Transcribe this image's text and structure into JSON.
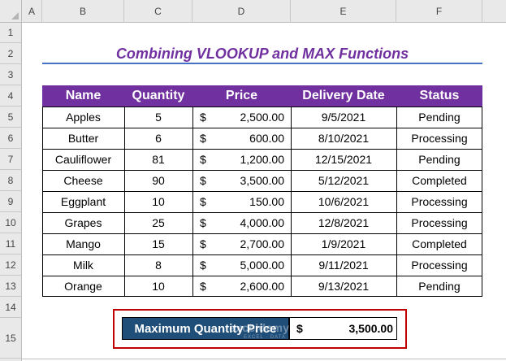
{
  "columns": [
    "A",
    "B",
    "C",
    "D",
    "E",
    "F"
  ],
  "rows": [
    "1",
    "2",
    "3",
    "4",
    "5",
    "6",
    "7",
    "8",
    "9",
    "10",
    "11",
    "12",
    "13",
    "14",
    "15"
  ],
  "title": "Combining VLOOKUP and MAX Functions",
  "headers": {
    "name": "Name",
    "quantity": "Quantity",
    "price": "Price",
    "delivery": "Delivery Date",
    "status": "Status"
  },
  "data": [
    {
      "name": "Apples",
      "quantity": "5",
      "currency": "$",
      "price": "2,500.00",
      "date": "9/5/2021",
      "status": "Pending"
    },
    {
      "name": "Butter",
      "quantity": "6",
      "currency": "$",
      "price": "600.00",
      "date": "8/10/2021",
      "status": "Processing"
    },
    {
      "name": "Cauliflower",
      "quantity": "81",
      "currency": "$",
      "price": "1,200.00",
      "date": "12/15/2021",
      "status": "Pending"
    },
    {
      "name": "Cheese",
      "quantity": "90",
      "currency": "$",
      "price": "3,500.00",
      "date": "5/12/2021",
      "status": "Completed"
    },
    {
      "name": "Eggplant",
      "quantity": "10",
      "currency": "$",
      "price": "150.00",
      "date": "10/6/2021",
      "status": "Processing"
    },
    {
      "name": "Grapes",
      "quantity": "25",
      "currency": "$",
      "price": "4,000.00",
      "date": "12/8/2021",
      "status": "Processing"
    },
    {
      "name": "Mango",
      "quantity": "15",
      "currency": "$",
      "price": "2,700.00",
      "date": "1/9/2021",
      "status": "Completed"
    },
    {
      "name": "Milk",
      "quantity": "8",
      "currency": "$",
      "price": "5,000.00",
      "date": "9/11/2021",
      "status": "Processing"
    },
    {
      "name": "Orange",
      "quantity": "10",
      "currency": "$",
      "price": "2,600.00",
      "date": "9/13/2021",
      "status": "Pending"
    }
  ],
  "result": {
    "label": "Maximum Quantity Price",
    "currency": "$",
    "value": "3,500.00"
  },
  "watermark": {
    "main": "exceldemy",
    "sub": "EXCEL · DATA · BI"
  },
  "colors": {
    "title": "#7030a0",
    "header_bg": "#7030a0",
    "label_bg": "#1f4e79",
    "highlight_border": "#c00000",
    "underline": "#4472c4"
  }
}
